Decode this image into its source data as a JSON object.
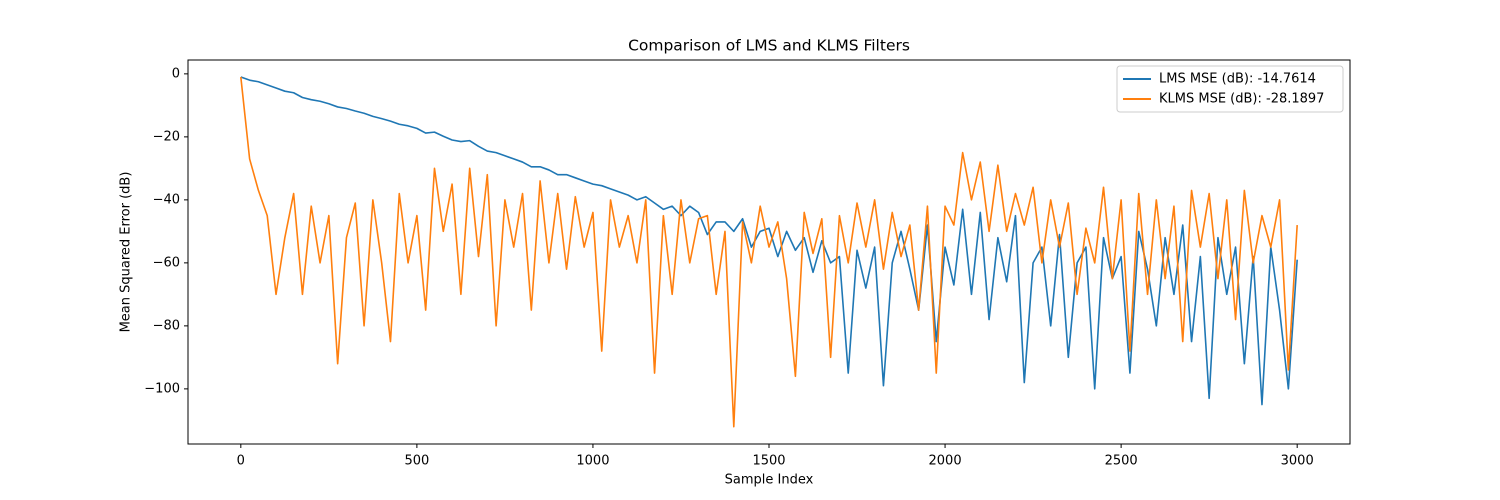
{
  "chart_data": {
    "type": "line",
    "title": "Comparison of LMS and KLMS Filters",
    "xlabel": "Sample Index",
    "ylabel": "Mean Squared Error (dB)",
    "x": [
      0,
      25,
      50,
      75,
      100,
      125,
      150,
      175,
      200,
      225,
      250,
      275,
      300,
      325,
      350,
      375,
      400,
      425,
      450,
      475,
      500,
      525,
      550,
      575,
      600,
      625,
      650,
      675,
      700,
      725,
      750,
      775,
      800,
      825,
      850,
      875,
      900,
      925,
      950,
      975,
      1000,
      1025,
      1050,
      1075,
      1100,
      1125,
      1150,
      1175,
      1200,
      1225,
      1250,
      1275,
      1300,
      1325,
      1350,
      1375,
      1400,
      1425,
      1450,
      1475,
      1500,
      1525,
      1550,
      1575,
      1600,
      1625,
      1650,
      1675,
      1700,
      1725,
      1750,
      1775,
      1800,
      1825,
      1850,
      1875,
      1900,
      1925,
      1950,
      1975,
      2000,
      2025,
      2050,
      2075,
      2100,
      2125,
      2150,
      2175,
      2200,
      2225,
      2250,
      2275,
      2300,
      2325,
      2350,
      2375,
      2400,
      2425,
      2450,
      2475,
      2500,
      2525,
      2550,
      2575,
      2600,
      2625,
      2650,
      2675,
      2700,
      2725,
      2750,
      2775,
      2800,
      2825,
      2850,
      2875,
      2900,
      2925,
      2950,
      2975,
      3000
    ],
    "series": [
      {
        "name": "LMS MSE (dB): -14.7614",
        "color": "#1f77b4",
        "values": [
          -1,
          -2,
          -2.5,
          -3.5,
          -4.5,
          -5.5,
          -6,
          -7.5,
          -8.2,
          -8.7,
          -9.5,
          -10.5,
          -11,
          -11.8,
          -12.5,
          -13.5,
          -14.2,
          -15,
          -16,
          -16.5,
          -17.3,
          -18.8,
          -18.5,
          -19.8,
          -21,
          -21.5,
          -21.2,
          -23,
          -24.5,
          -25,
          -26,
          -27,
          -28,
          -29.5,
          -29.5,
          -30.5,
          -32,
          -32,
          -33,
          -34,
          -35,
          -35.5,
          -36.5,
          -37.5,
          -38.5,
          -40,
          -39,
          -41,
          -43,
          -42,
          -45,
          -42,
          -44,
          -51,
          -47,
          -47,
          -50,
          -46,
          -55,
          -50,
          -49,
          -58,
          -50,
          -56,
          -52,
          -63,
          -53,
          -60,
          -58,
          -95,
          -56,
          -68,
          -55,
          -99,
          -60,
          -50,
          -62,
          -75,
          -48,
          -85,
          -55,
          -67,
          -43,
          -70,
          -44,
          -78,
          -52,
          -66,
          -45,
          -98,
          -60,
          -55,
          -80,
          -51,
          -90,
          -60,
          -55,
          -100,
          -52,
          -65,
          -58,
          -95,
          -50,
          -62,
          -80,
          -52,
          -70,
          -48,
          -85,
          -58,
          -103,
          -52,
          -70,
          -55,
          -92,
          -58,
          -105,
          -55,
          -75,
          -100,
          -59
        ]
      },
      {
        "name": "KLMS MSE (dB): -28.1897",
        "color": "#ff7f0e",
        "values": [
          -1,
          -27,
          -37,
          -45,
          -70,
          -52,
          -38,
          -70,
          -42,
          -60,
          -45,
          -92,
          -52,
          -41,
          -80,
          -40,
          -60,
          -85,
          -38,
          -60,
          -45,
          -75,
          -30,
          -50,
          -35,
          -70,
          -30,
          -58,
          -32,
          -80,
          -40,
          -55,
          -38,
          -75,
          -34,
          -60,
          -38,
          -62,
          -39,
          -55,
          -44,
          -88,
          -40,
          -55,
          -45,
          -60,
          -40,
          -95,
          -45,
          -70,
          -40,
          -60,
          -46,
          -45,
          -70,
          -50,
          -112,
          -47,
          -60,
          -42,
          -55,
          -47,
          -65,
          -96,
          -44,
          -57,
          -46,
          -90,
          -45,
          -60,
          -41,
          -55,
          -40,
          -62,
          -44,
          -58,
          -48,
          -75,
          -42,
          -95,
          -42,
          -48,
          -25,
          -40,
          -28,
          -50,
          -29,
          -50,
          -38,
          -48,
          -36,
          -60,
          -40,
          -55,
          -41,
          -70,
          -49,
          -60,
          -36,
          -65,
          -40,
          -88,
          -38,
          -70,
          -40,
          -65,
          -42,
          -85,
          -37,
          -55,
          -38,
          -65,
          -40,
          -78,
          -37,
          -60,
          -45,
          -55,
          -40,
          -94,
          -48
        ]
      }
    ],
    "xlim": [
      -150,
      3150
    ],
    "ylim": [
      -117.5,
      4.4
    ],
    "xticks": [
      0,
      500,
      1000,
      1500,
      2000,
      2500,
      3000
    ],
    "yticks": [
      {
        "value": -100,
        "label": "−100"
      },
      {
        "value": -80,
        "label": "−80"
      },
      {
        "value": -60,
        "label": "−60"
      },
      {
        "value": -40,
        "label": "−40"
      },
      {
        "value": -20,
        "label": "−20"
      },
      0
    ],
    "legend": "upper right"
  }
}
